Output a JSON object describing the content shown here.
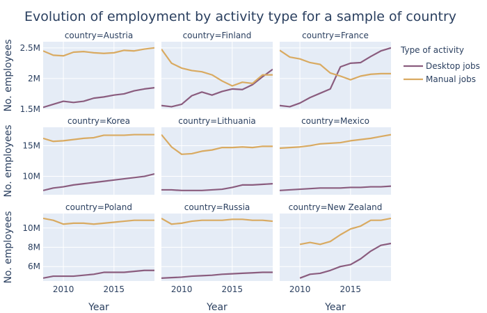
{
  "chart_data": {
    "type": "line",
    "title": "Evolution of employment by activity type for a sample of country",
    "xlabel": "Year",
    "ylabel": "No. employees",
    "legend": {
      "title": "Type of activity",
      "placement": "right",
      "items": [
        {
          "name": "Desktop jobs",
          "color": "#8a5c7e"
        },
        {
          "name": "Manual jobs",
          "color": "#d9aa61"
        }
      ]
    },
    "xlim": [
      2008,
      2019
    ],
    "x_ticks": [
      2010,
      2015
    ],
    "x_tick_labels": [
      "2010",
      "2015"
    ],
    "grid": true,
    "rows": [
      {
        "ylim": [
          1500000,
          2600000
        ],
        "y_ticks": [
          1500000,
          2000000,
          2500000
        ],
        "y_tick_labels": [
          "1.5M",
          "2M",
          "2.5M"
        ],
        "facets": [
          {
            "label": "country=Austria",
            "series": [
              {
                "name": "Desktop jobs",
                "x": [
                  2008,
                  2009,
                  2010,
                  2011,
                  2012,
                  2013,
                  2014,
                  2015,
                  2016,
                  2017,
                  2018,
                  2019
                ],
                "y": [
                  1530000,
                  1580000,
                  1630000,
                  1610000,
                  1630000,
                  1680000,
                  1700000,
                  1730000,
                  1750000,
                  1800000,
                  1830000,
                  1850000
                ]
              },
              {
                "name": "Manual jobs",
                "x": [
                  2008,
                  2009,
                  2010,
                  2011,
                  2012,
                  2013,
                  2014,
                  2015,
                  2016,
                  2017,
                  2018,
                  2019
                ],
                "y": [
                  2450000,
                  2380000,
                  2370000,
                  2430000,
                  2440000,
                  2420000,
                  2410000,
                  2420000,
                  2460000,
                  2450000,
                  2480000,
                  2500000
                ]
              }
            ]
          },
          {
            "label": "country=Finland",
            "series": [
              {
                "name": "Desktop jobs",
                "x": [
                  2008,
                  2009,
                  2010,
                  2011,
                  2012,
                  2013,
                  2014,
                  2015,
                  2016,
                  2017,
                  2018,
                  2019
                ],
                "y": [
                  1560000,
                  1540000,
                  1580000,
                  1720000,
                  1780000,
                  1730000,
                  1790000,
                  1830000,
                  1820000,
                  1900000,
                  2030000,
                  2150000
                ]
              },
              {
                "name": "Manual jobs",
                "x": [
                  2008,
                  2009,
                  2010,
                  2011,
                  2012,
                  2013,
                  2014,
                  2015,
                  2016,
                  2017,
                  2018,
                  2019
                ],
                "y": [
                  2480000,
                  2250000,
                  2170000,
                  2130000,
                  2110000,
                  2060000,
                  1960000,
                  1880000,
                  1940000,
                  1920000,
                  2060000,
                  2060000
                ]
              }
            ]
          },
          {
            "label": "country=France",
            "series": [
              {
                "name": "Desktop jobs",
                "x": [
                  2008,
                  2009,
                  2010,
                  2011,
                  2012,
                  2013,
                  2014,
                  2015,
                  2016,
                  2017,
                  2018,
                  2019
                ],
                "y": [
                  1560000,
                  1540000,
                  1600000,
                  1690000,
                  1760000,
                  1830000,
                  2190000,
                  2250000,
                  2260000,
                  2360000,
                  2450000,
                  2500000
                ]
              },
              {
                "name": "Manual jobs",
                "x": [
                  2008,
                  2009,
                  2010,
                  2011,
                  2012,
                  2013,
                  2014,
                  2015,
                  2016,
                  2017,
                  2018,
                  2019
                ],
                "y": [
                  2460000,
                  2350000,
                  2320000,
                  2260000,
                  2230000,
                  2090000,
                  2040000,
                  1980000,
                  2040000,
                  2070000,
                  2080000,
                  2080000
                ]
              }
            ]
          }
        ]
      },
      {
        "ylim": [
          7000000,
          18000000
        ],
        "y_ticks": [
          10000000,
          15000000
        ],
        "y_tick_labels": [
          "10M",
          "15M"
        ],
        "facets": [
          {
            "label": "country=Korea",
            "series": [
              {
                "name": "Desktop jobs",
                "x": [
                  2008,
                  2009,
                  2010,
                  2011,
                  2012,
                  2013,
                  2014,
                  2015,
                  2016,
                  2017,
                  2018,
                  2019
                ],
                "y": [
                  7700000,
                  8100000,
                  8300000,
                  8600000,
                  8800000,
                  9000000,
                  9200000,
                  9400000,
                  9600000,
                  9800000,
                  10000000,
                  10400000
                ]
              },
              {
                "name": "Manual jobs",
                "x": [
                  2008,
                  2009,
                  2010,
                  2011,
                  2012,
                  2013,
                  2014,
                  2015,
                  2016,
                  2017,
                  2018,
                  2019
                ],
                "y": [
                  16200000,
                  15700000,
                  15800000,
                  16000000,
                  16200000,
                  16300000,
                  16700000,
                  16700000,
                  16700000,
                  16800000,
                  16800000,
                  16800000
                ]
              }
            ]
          },
          {
            "label": "country=Lithuania",
            "series": [
              {
                "name": "Desktop jobs",
                "x": [
                  2008,
                  2009,
                  2010,
                  2011,
                  2012,
                  2013,
                  2014,
                  2015,
                  2016,
                  2017,
                  2018,
                  2019
                ],
                "y": [
                  7800000,
                  7800000,
                  7700000,
                  7700000,
                  7700000,
                  7800000,
                  7900000,
                  8200000,
                  8600000,
                  8600000,
                  8700000,
                  8800000
                ]
              },
              {
                "name": "Manual jobs",
                "x": [
                  2008,
                  2009,
                  2010,
                  2011,
                  2012,
                  2013,
                  2014,
                  2015,
                  2016,
                  2017,
                  2018,
                  2019
                ],
                "y": [
                  16800000,
                  14800000,
                  13600000,
                  13700000,
                  14100000,
                  14300000,
                  14700000,
                  14700000,
                  14800000,
                  14700000,
                  14900000,
                  14900000
                ]
              }
            ]
          },
          {
            "label": "country=Mexico",
            "series": [
              {
                "name": "Desktop jobs",
                "x": [
                  2008,
                  2009,
                  2010,
                  2011,
                  2012,
                  2013,
                  2014,
                  2015,
                  2016,
                  2017,
                  2018,
                  2019
                ],
                "y": [
                  7700000,
                  7800000,
                  7900000,
                  8000000,
                  8100000,
                  8100000,
                  8100000,
                  8200000,
                  8200000,
                  8300000,
                  8300000,
                  8400000
                ]
              },
              {
                "name": "Manual jobs",
                "x": [
                  2008,
                  2009,
                  2010,
                  2011,
                  2012,
                  2013,
                  2014,
                  2015,
                  2016,
                  2017,
                  2018,
                  2019
                ],
                "y": [
                  14600000,
                  14700000,
                  14800000,
                  15000000,
                  15300000,
                  15400000,
                  15500000,
                  15800000,
                  16000000,
                  16200000,
                  16500000,
                  16800000
                ]
              }
            ]
          }
        ]
      },
      {
        "ylim": [
          4500000,
          11500000
        ],
        "y_ticks": [
          6000000,
          8000000,
          10000000
        ],
        "y_tick_labels": [
          "6M",
          "8M",
          "10M"
        ],
        "facets": [
          {
            "label": "country=Poland",
            "series": [
              {
                "name": "Desktop jobs",
                "x": [
                  2008,
                  2009,
                  2010,
                  2011,
                  2012,
                  2013,
                  2014,
                  2015,
                  2016,
                  2017,
                  2018,
                  2019
                ],
                "y": [
                  4800000,
                  5000000,
                  5000000,
                  5000000,
                  5100000,
                  5200000,
                  5400000,
                  5400000,
                  5400000,
                  5500000,
                  5600000,
                  5600000
                ]
              },
              {
                "name": "Manual jobs",
                "x": [
                  2008,
                  2009,
                  2010,
                  2011,
                  2012,
                  2013,
                  2014,
                  2015,
                  2016,
                  2017,
                  2018,
                  2019
                ],
                "y": [
                  11000000,
                  10800000,
                  10400000,
                  10500000,
                  10500000,
                  10400000,
                  10500000,
                  10600000,
                  10700000,
                  10800000,
                  10800000,
                  10800000
                ]
              }
            ]
          },
          {
            "label": "country=Russia",
            "series": [
              {
                "name": "Desktop jobs",
                "x": [
                  2008,
                  2009,
                  2010,
                  2011,
                  2012,
                  2013,
                  2014,
                  2015,
                  2016,
                  2017,
                  2018,
                  2019
                ],
                "y": [
                  4800000,
                  4850000,
                  4900000,
                  5000000,
                  5050000,
                  5100000,
                  5200000,
                  5250000,
                  5300000,
                  5350000,
                  5400000,
                  5400000
                ]
              },
              {
                "name": "Manual jobs",
                "x": [
                  2008,
                  2009,
                  2010,
                  2011,
                  2012,
                  2013,
                  2014,
                  2015,
                  2016,
                  2017,
                  2018,
                  2019
                ],
                "y": [
                  11000000,
                  10400000,
                  10500000,
                  10700000,
                  10800000,
                  10800000,
                  10800000,
                  10900000,
                  10900000,
                  10800000,
                  10800000,
                  10700000
                ]
              }
            ]
          },
          {
            "label": "country=New Zealand",
            "series": [
              {
                "name": "Desktop jobs",
                "x": [
                  2010,
                  2011,
                  2012,
                  2013,
                  2014,
                  2015,
                  2016,
                  2017,
                  2018,
                  2019
                ],
                "y": [
                  4800000,
                  5200000,
                  5300000,
                  5600000,
                  6000000,
                  6200000,
                  6800000,
                  7600000,
                  8200000,
                  8400000
                ]
              },
              {
                "name": "Manual jobs",
                "x": [
                  2010,
                  2011,
                  2012,
                  2013,
                  2014,
                  2015,
                  2016,
                  2017,
                  2018,
                  2019
                ],
                "y": [
                  8300000,
                  8500000,
                  8300000,
                  8600000,
                  9300000,
                  9900000,
                  10200000,
                  10800000,
                  10800000,
                  11000000
                ]
              }
            ]
          }
        ]
      }
    ]
  }
}
